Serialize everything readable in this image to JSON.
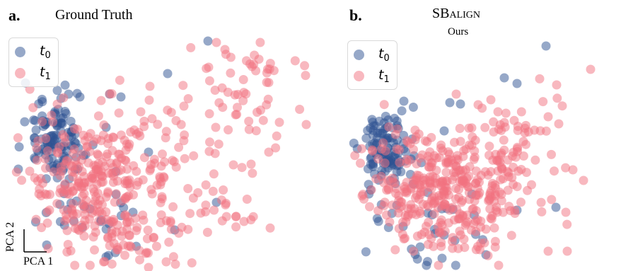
{
  "panels": [
    {
      "letter": "a.",
      "title": "Ground Truth",
      "subtitle": "",
      "legend": [
        {
          "label": "t",
          "sub": "0",
          "color": "#2d5291"
        },
        {
          "label": "t",
          "sub": "1",
          "color": "#f2727f"
        }
      ]
    },
    {
      "letter": "b.",
      "title_prefix": "SB",
      "title_sc": "align",
      "subtitle": "Ours",
      "legend": [
        {
          "label": "t",
          "sub": "0",
          "color": "#2d5291"
        },
        {
          "label": "t",
          "sub": "1",
          "color": "#f2727f"
        }
      ]
    }
  ],
  "axes_indicator": {
    "xlabel": "PCA 1",
    "ylabel": "PCA 2"
  },
  "chart_data": [
    {
      "type": "scatter",
      "title": "Ground Truth",
      "xlabel": "PCA 1",
      "ylabel": "PCA 2",
      "xlim": [
        0,
        440
      ],
      "ylim": [
        0,
        383
      ],
      "grid": false,
      "legend_position": "top-left",
      "series": [
        {
          "name": "t0",
          "color": "#2d5291",
          "clusters": [
            {
              "cx": 80,
              "cy": 200,
              "sx": 22,
              "sy": 30,
              "n": 110
            },
            {
              "cx": 130,
              "cy": 300,
              "sx": 40,
              "sy": 30,
              "n": 25
            }
          ],
          "extra": [
            [
              97,
              133
            ],
            [
              113,
              137
            ],
            [
              155,
              133
            ],
            [
              171,
              137
            ],
            [
              150,
              180
            ],
            [
              237,
              104
            ],
            [
              294,
              58
            ],
            [
              306,
              286
            ],
            [
              210,
              215
            ],
            [
              188,
              300
            ],
            [
              247,
              325
            ],
            [
              163,
              357
            ],
            [
              150,
              363
            ]
          ]
        },
        {
          "name": "t1",
          "color": "#f2727f",
          "clusters": [
            {
              "cx": 130,
              "cy": 255,
              "sx": 45,
              "sy": 45,
              "n": 260
            },
            {
              "cx": 240,
              "cy": 225,
              "sx": 40,
              "sy": 40,
              "n": 45
            },
            {
              "cx": 195,
              "cy": 335,
              "sx": 35,
              "sy": 22,
              "n": 45
            },
            {
              "cx": 300,
              "cy": 300,
              "sx": 35,
              "sy": 25,
              "n": 25
            },
            {
              "cx": 345,
              "cy": 125,
              "sx": 45,
              "sy": 45,
              "n": 55
            }
          ],
          "extra": [
            [
              433,
              176
            ],
            [
              212,
              122
            ],
            [
              199,
              158
            ],
            [
              318,
              70
            ],
            [
              295,
              95
            ],
            [
              260,
              150
            ],
            [
              305,
              180
            ],
            [
              330,
              233
            ],
            [
              355,
              232
            ],
            [
              380,
              215
            ],
            [
              345,
              313
            ],
            [
              235,
              370
            ],
            [
              210,
              378
            ],
            [
              42,
              242
            ],
            [
              55,
              274
            ]
          ]
        }
      ]
    },
    {
      "type": "scatter",
      "title": "SBalign",
      "xlabel": "PCA 1",
      "ylabel": "PCA 2",
      "xlim": [
        0,
        438
      ],
      "ylim": [
        0,
        383
      ],
      "grid": false,
      "legend_position": "top-left",
      "series": [
        {
          "name": "t0",
          "color": "#2d5291",
          "clusters": [
            {
              "cx": 108,
              "cy": 210,
              "sx": 20,
              "sy": 30,
              "n": 110
            },
            {
              "cx": 170,
              "cy": 320,
              "sx": 40,
              "sy": 30,
              "n": 25
            }
          ],
          "extra": [
            [
              332,
              65
            ],
            [
              273,
              110
            ],
            [
              291,
              118
            ],
            [
              196,
              145
            ],
            [
              211,
              147
            ],
            [
              188,
              185
            ],
            [
              131,
              143
            ],
            [
              130,
              320
            ],
            [
              154,
              349
            ],
            [
              185,
              365
            ],
            [
              346,
              293
            ],
            [
              291,
              297
            ],
            [
              247,
              360
            ]
          ]
        },
        {
          "name": "t1",
          "color": "#f2727f",
          "clusters": [
            {
              "cx": 180,
              "cy": 260,
              "sx": 48,
              "sy": 42,
              "n": 290
            },
            {
              "cx": 265,
              "cy": 240,
              "sx": 40,
              "sy": 40,
              "n": 55
            },
            {
              "cx": 235,
              "cy": 320,
              "sx": 35,
              "sy": 25,
              "n": 45
            },
            {
              "cx": 300,
              "cy": 185,
              "sx": 30,
              "sy": 30,
              "n": 25
            }
          ],
          "extra": [
            [
              395,
              98
            ],
            [
              347,
              120
            ],
            [
              335,
              165
            ],
            [
              350,
              175
            ],
            [
              370,
              240
            ],
            [
              385,
              255
            ],
            [
              360,
              300
            ],
            [
              335,
              355
            ],
            [
              362,
              355
            ],
            [
              265,
              375
            ],
            [
              205,
              133
            ],
            [
              236,
              148
            ],
            [
              264,
              158
            ],
            [
              300,
              200
            ]
          ]
        }
      ]
    }
  ]
}
